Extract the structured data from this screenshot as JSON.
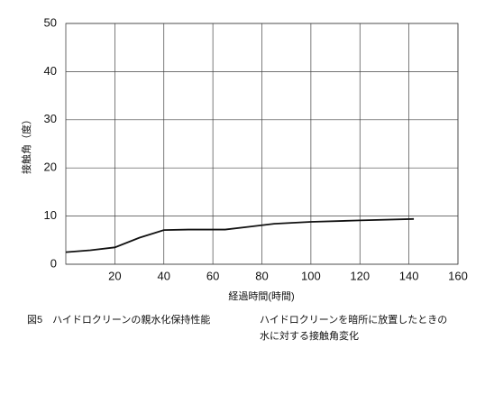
{
  "chart_data": {
    "type": "line",
    "ylabel": "接触角（度）",
    "xlabel": "経過時間(時間)",
    "x": [
      0,
      10,
      20,
      30,
      40,
      50,
      65,
      75,
      85,
      100,
      120,
      142
    ],
    "values": [
      2.5,
      2.9,
      3.5,
      5.5,
      7.1,
      7.2,
      7.2,
      7.8,
      8.4,
      8.8,
      9.1,
      9.4
    ],
    "color": "#111111",
    "xlim": [
      0,
      160
    ],
    "xticks": [
      20,
      40,
      60,
      80,
      100,
      120,
      140,
      160
    ],
    "ylim": [
      0,
      50
    ],
    "yticks": [
      0,
      10,
      20,
      30,
      40,
      50
    ],
    "grid": true
  },
  "caption": {
    "figure": "図5　ハイドロクリーンの親水化保持性能",
    "description": [
      "ハイドロクリーンを暗所に放置したときの",
      "水に対する接触角変化"
    ]
  }
}
